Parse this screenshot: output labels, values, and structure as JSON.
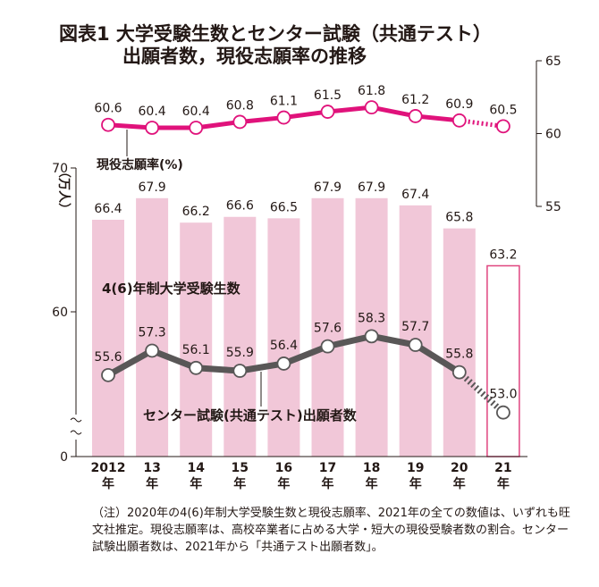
{
  "title": {
    "line1": "図表1  大学受験生数とセンター試験（共通テスト）",
    "line2": "出願者数，現役志願率の推移"
  },
  "chart_data": {
    "type": "bar",
    "categories": [
      "2012\n年",
      "13\n年",
      "14\n年",
      "15\n年",
      "16\n年",
      "17\n年",
      "18\n年",
      "19\n年",
      "20\n年",
      "21\n年"
    ],
    "series": [
      {
        "name": "4(6)年制大学受験生数",
        "type": "bar",
        "values": [
          66.4,
          67.9,
          66.2,
          66.6,
          66.5,
          67.9,
          67.9,
          67.4,
          65.8,
          63.2
        ]
      },
      {
        "name": "センター試験(共通テスト)出願者数",
        "type": "line",
        "values": [
          55.6,
          57.3,
          56.1,
          55.9,
          56.4,
          57.6,
          58.3,
          57.7,
          55.8,
          53.0
        ]
      },
      {
        "name": "現役志願率(%)",
        "type": "line",
        "axis": "right",
        "values": [
          60.6,
          60.4,
          60.4,
          60.8,
          61.1,
          61.5,
          61.8,
          61.2,
          60.9,
          60.5
        ]
      }
    ],
    "left_axis": {
      "label": "（万人）",
      "ticks": [
        "70",
        "60",
        "0"
      ],
      "broken": true
    },
    "right_axis": {
      "ticks": [
        "65",
        "60",
        "55"
      ],
      "ylim": [
        55,
        65
      ]
    },
    "colors": {
      "bar": "#f1c7d8",
      "bar_estimate_border": "#e0457f",
      "enrollment_line": "#e0127b",
      "applicant_line": "#595757",
      "text": "#231815"
    }
  },
  "labels": {
    "bar_series": "4(6)年制大学受験生数",
    "applicant_series": "センター試験(共通テスト)出願者数",
    "rate_series": "現役志願率(%)"
  },
  "note": "（注）2020年の4(6)年制大学受験生数と現役志願率、2021年の全ての数値は、いずれも旺文社推定。現役志願率は、高校卒業者に占める大学・短大の現役受験者数の割合。センター試験出願者数は、2021年から「共通テスト出願者数」。"
}
